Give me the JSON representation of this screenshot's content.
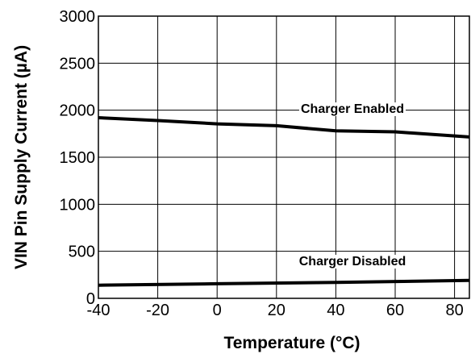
{
  "chart_data": {
    "type": "line",
    "title": "",
    "xlabel": "Temperature (°C)",
    "ylabel": "VIN Pin Supply Current (µA)",
    "xlim": [
      -40,
      85
    ],
    "ylim": [
      0,
      3000
    ],
    "x_ticks": [
      -40,
      -20,
      0,
      20,
      40,
      60,
      80
    ],
    "y_ticks": [
      0,
      500,
      1000,
      1500,
      2000,
      2500,
      3000
    ],
    "grid": true,
    "series": [
      {
        "name": "Charger Enabled",
        "x": [
          -40,
          -20,
          0,
          20,
          40,
          60,
          85
        ],
        "y": [
          1920,
          1890,
          1855,
          1835,
          1780,
          1770,
          1715
        ]
      },
      {
        "name": "Charger Disabled",
        "x": [
          -40,
          0,
          40,
          85
        ],
        "y": [
          140,
          155,
          170,
          190
        ]
      }
    ]
  }
}
